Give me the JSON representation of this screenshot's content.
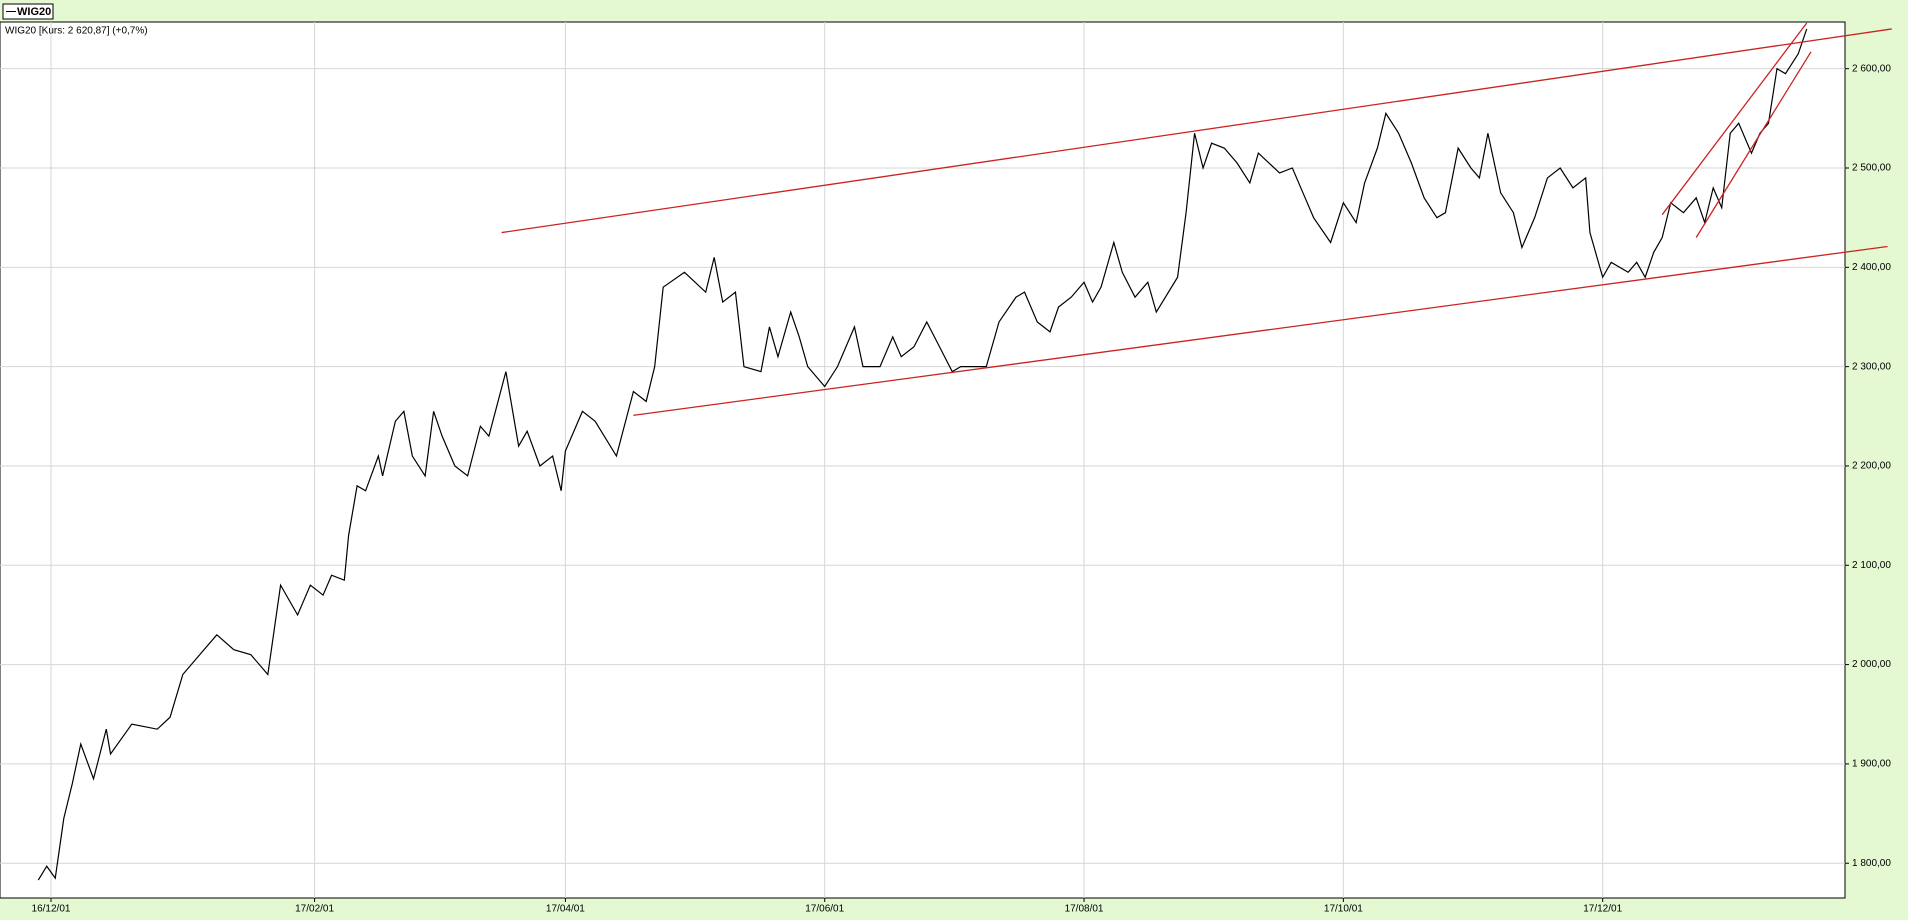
{
  "chart_data": {
    "type": "line",
    "subtitle": "WIG20 [Kurs: 2 620,87] (+0,7%)",
    "x": [
      "2016-11-28",
      "2016-11-30",
      "2016-12-02",
      "2016-12-04",
      "2016-12-06",
      "2016-12-08",
      "2016-12-11",
      "2016-12-14",
      "2016-12-15",
      "2016-12-20",
      "2016-12-26",
      "2016-12-29",
      "2017-01-01",
      "2017-01-05",
      "2017-01-09",
      "2017-01-13",
      "2017-01-17",
      "2017-01-21",
      "2017-01-24",
      "2017-01-28",
      "2017-01-31",
      "2017-02-03",
      "2017-02-05",
      "2017-02-08",
      "2017-02-09",
      "2017-02-11",
      "2017-02-13",
      "2017-02-16",
      "2017-02-17",
      "2017-02-20",
      "2017-02-22",
      "2017-02-24",
      "2017-02-27",
      "2017-03-01",
      "2017-03-03",
      "2017-03-06",
      "2017-03-09",
      "2017-03-12",
      "2017-03-14",
      "2017-03-18",
      "2017-03-21",
      "2017-03-23",
      "2017-03-26",
      "2017-03-29",
      "2017-03-31",
      "2017-04-01",
      "2017-04-05",
      "2017-04-08",
      "2017-04-13",
      "2017-04-17",
      "2017-04-20",
      "2017-04-22",
      "2017-04-24",
      "2017-04-29",
      "2017-05-04",
      "2017-05-06",
      "2017-05-08",
      "2017-05-11",
      "2017-05-13",
      "2017-05-17",
      "2017-05-19",
      "2017-05-21",
      "2017-05-24",
      "2017-05-26",
      "2017-05-28",
      "2017-06-01",
      "2017-06-04",
      "2017-06-08",
      "2017-06-10",
      "2017-06-14",
      "2017-06-17",
      "2017-06-19",
      "2017-06-22",
      "2017-06-25",
      "2017-06-28",
      "2017-07-01",
      "2017-07-03",
      "2017-07-09",
      "2017-07-12",
      "2017-07-16",
      "2017-07-18",
      "2017-07-21",
      "2017-07-24",
      "2017-07-26",
      "2017-07-29",
      "2017-08-01",
      "2017-08-03",
      "2017-08-05",
      "2017-08-08",
      "2017-08-10",
      "2017-08-13",
      "2017-08-16",
      "2017-08-18",
      "2017-08-23",
      "2017-08-25",
      "2017-08-27",
      "2017-08-29",
      "2017-08-31",
      "2017-09-03",
      "2017-09-06",
      "2017-09-09",
      "2017-09-11",
      "2017-09-16",
      "2017-09-19",
      "2017-09-22",
      "2017-09-24",
      "2017-09-28",
      "2017-10-01",
      "2017-10-04",
      "2017-10-06",
      "2017-10-09",
      "2017-10-11",
      "2017-10-14",
      "2017-10-17",
      "2017-10-20",
      "2017-10-23",
      "2017-10-25",
      "2017-10-28",
      "2017-10-31",
      "2017-11-02",
      "2017-11-04",
      "2017-11-07",
      "2017-11-10",
      "2017-11-12",
      "2017-11-15",
      "2017-11-18",
      "2017-11-21",
      "2017-11-24",
      "2017-11-27",
      "2017-11-28",
      "2017-12-01",
      "2017-12-03",
      "2017-12-07",
      "2017-12-09",
      "2017-12-11",
      "2017-12-13",
      "2017-12-15",
      "2017-12-17",
      "2017-12-20",
      "2017-12-23",
      "2017-12-25",
      "2017-12-27",
      "2017-12-29",
      "2017-12-31",
      "2018-01-02",
      "2018-01-05",
      "2018-01-07",
      "2018-01-09",
      "2018-01-11",
      "2018-01-13",
      "2018-01-16",
      "2018-01-18"
    ],
    "series": [
      {
        "name": "WIG20",
        "color": "#000000",
        "values": [
          1783,
          1797,
          1785,
          1845,
          1880,
          1920,
          1885,
          1935,
          1910,
          1940,
          1935,
          1947,
          1990,
          2010,
          2030,
          2015,
          2010,
          1990,
          2080,
          2050,
          2080,
          2070,
          2090,
          2085,
          2130,
          2180,
          2175,
          2210,
          2190,
          2245,
          2255,
          2210,
          2190,
          2255,
          2230,
          2200,
          2190,
          2240,
          2230,
          2295,
          2220,
          2235,
          2200,
          2210,
          2175,
          2215,
          2255,
          2245,
          2210,
          2275,
          2265,
          2300,
          2380,
          2395,
          2375,
          2410,
          2365,
          2375,
          2300,
          2295,
          2340,
          2310,
          2355,
          2330,
          2300,
          2280,
          2300,
          2340,
          2300,
          2300,
          2330,
          2310,
          2320,
          2345,
          2320,
          2295,
          2300,
          2300,
          2345,
          2370,
          2375,
          2345,
          2335,
          2360,
          2370,
          2385,
          2365,
          2380,
          2425,
          2395,
          2370,
          2385,
          2355,
          2390,
          2455,
          2535,
          2500,
          2525,
          2520,
          2505,
          2485,
          2515,
          2495,
          2500,
          2470,
          2450,
          2425,
          2465,
          2445,
          2485,
          2520,
          2555,
          2535,
          2505,
          2470,
          2450,
          2455,
          2520,
          2500,
          2490,
          2535,
          2475,
          2455,
          2420,
          2450,
          2490,
          2500,
          2480,
          2490,
          2435,
          2390,
          2405,
          2395,
          2405,
          2390,
          2415,
          2430,
          2465,
          2455,
          2470,
          2445,
          2480,
          2460,
          2535,
          2545,
          2515,
          2535,
          2545,
          2600,
          2595,
          2615,
          2640
        ]
      }
    ],
    "trend_lines": [
      {
        "color": "#cc2222",
        "x": [
          "2017-03-17",
          "2018-02-07"
        ],
        "values": [
          2435,
          2640
        ]
      },
      {
        "color": "#cc2222",
        "x": [
          "2017-04-17",
          "2018-02-06"
        ],
        "values": [
          2251,
          2421
        ]
      },
      {
        "color": "#cc2222",
        "x": [
          "2017-12-15",
          "2018-01-18"
        ],
        "values": [
          2453,
          2646
        ]
      },
      {
        "color": "#cc2222",
        "x": [
          "2017-12-23",
          "2018-01-19"
        ],
        "values": [
          2430,
          2617
        ]
      }
    ],
    "xlim": [
      "2016-11-19",
      "2018-01-27"
    ],
    "xticks": [
      {
        "value": "2016-12-01",
        "label": "16/12/01"
      },
      {
        "value": "2017-02-01",
        "label": "17/02/01"
      },
      {
        "value": "2017-04-01",
        "label": "17/04/01"
      },
      {
        "value": "2017-06-01",
        "label": "17/06/01"
      },
      {
        "value": "2017-08-01",
        "label": "17/08/01"
      },
      {
        "value": "2017-10-01",
        "label": "17/10/01"
      },
      {
        "value": "2017-12-01",
        "label": "17/12/01"
      }
    ],
    "ylim": [
      1765,
      2647
    ],
    "yticks": [
      {
        "value": 1800,
        "label": "1 800,00"
      },
      {
        "value": 1900,
        "label": "1 900,00"
      },
      {
        "value": 2000,
        "label": "2 000,00"
      },
      {
        "value": 2100,
        "label": "2 100,00"
      },
      {
        "value": 2200,
        "label": "2 200,00"
      },
      {
        "value": 2300,
        "label": "2 300,00"
      },
      {
        "value": 2400,
        "label": "2 400,00"
      },
      {
        "value": 2500,
        "label": "2 500,00"
      },
      {
        "value": 2600,
        "label": "2 600,00"
      }
    ],
    "grid": true
  }
}
